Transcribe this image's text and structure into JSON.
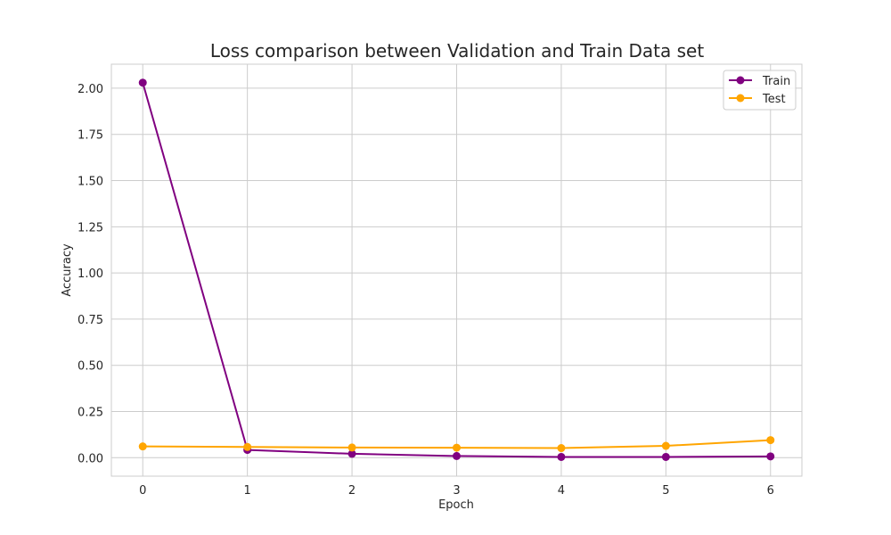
{
  "chart_data": {
    "type": "line",
    "title": "Loss comparison between Validation and Train Data set",
    "xlabel": "Epoch",
    "ylabel": "Accuracy",
    "xlim": [
      -0.3,
      6.3
    ],
    "ylim": [
      -0.1,
      2.13
    ],
    "x": [
      0,
      1,
      2,
      3,
      4,
      5,
      6
    ],
    "x_ticks": [
      "0",
      "1",
      "2",
      "3",
      "4",
      "5",
      "6"
    ],
    "y_ticks": [
      0.0,
      0.25,
      0.5,
      0.75,
      1.0,
      1.25,
      1.5,
      1.75,
      2.0
    ],
    "y_tick_labels": [
      "0.00",
      "0.25",
      "0.50",
      "0.75",
      "1.00",
      "1.25",
      "1.50",
      "1.75",
      "2.00"
    ],
    "grid": true,
    "legend_position": "top-right",
    "series": [
      {
        "name": "Train",
        "color": "#800080",
        "marker": "circle",
        "values": [
          2.03,
          0.042,
          0.021,
          0.009,
          0.004,
          0.004,
          0.007
        ]
      },
      {
        "name": "Test",
        "color": "#FFA500",
        "marker": "circle",
        "values": [
          0.061,
          0.058,
          0.055,
          0.054,
          0.052,
          0.064,
          0.095
        ]
      }
    ]
  }
}
